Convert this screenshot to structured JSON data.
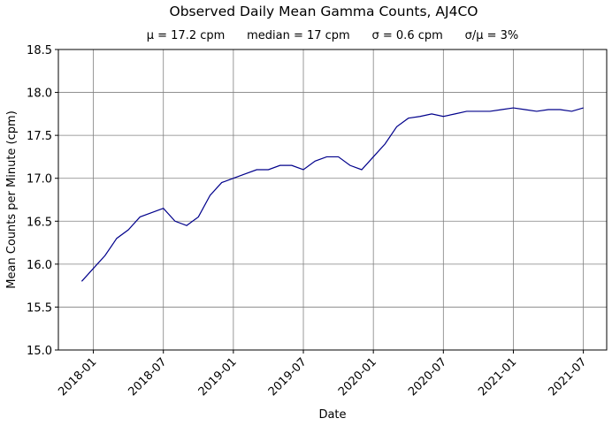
{
  "chart_data": {
    "type": "line",
    "title": "Observed Daily Mean Gamma Counts, AJ4CO",
    "subtitle": "μ = 17.2 cpm      median = 17 cpm      σ = 0.6 cpm      σ/μ = 3%",
    "x_label": "Date",
    "y_label": "Mean Counts per Minute (cpm)",
    "x": [
      "2017-12",
      "2018-01",
      "2018-02",
      "2018-03",
      "2018-04",
      "2018-05",
      "2018-06",
      "2018-07",
      "2018-08",
      "2018-09",
      "2018-10",
      "2018-11",
      "2018-12",
      "2019-01",
      "2019-02",
      "2019-03",
      "2019-04",
      "2019-05",
      "2019-06",
      "2019-07",
      "2019-08",
      "2019-09",
      "2019-10",
      "2019-11",
      "2019-12",
      "2020-01",
      "2020-02",
      "2020-03",
      "2020-04",
      "2020-05",
      "2020-06",
      "2020-07",
      "2020-08",
      "2020-09",
      "2020-10",
      "2020-11",
      "2020-12",
      "2021-01",
      "2021-02",
      "2021-03",
      "2021-04",
      "2021-05",
      "2021-06",
      "2021-07"
    ],
    "series": [
      {
        "name": "Daily mean",
        "color": "#00008b",
        "values": [
          15.8,
          15.95,
          16.1,
          16.3,
          16.4,
          16.55,
          16.6,
          16.65,
          16.5,
          16.45,
          16.55,
          16.8,
          16.95,
          17.0,
          17.05,
          17.1,
          17.1,
          17.15,
          17.15,
          17.1,
          17.2,
          17.25,
          17.25,
          17.15,
          17.1,
          17.25,
          17.4,
          17.6,
          17.7,
          17.72,
          17.75,
          17.72,
          17.75,
          17.78,
          17.78,
          17.78,
          17.8,
          17.82,
          17.8,
          17.78,
          17.8,
          17.8,
          17.78,
          17.82
        ]
      }
    ],
    "xlim": [
      "2017-10",
      "2021-09"
    ],
    "xticks": [
      "2018-01",
      "2018-07",
      "2019-01",
      "2019-07",
      "2020-01",
      "2020-07",
      "2021-01",
      "2021-07"
    ],
    "ylim": [
      15.0,
      18.5
    ],
    "yticks": [
      {
        "value": 15.0,
        "label": "15.0"
      },
      {
        "value": 15.5,
        "label": "15.5"
      },
      {
        "value": 16.0,
        "label": "16.0"
      },
      {
        "value": 16.5,
        "label": "16.5"
      },
      {
        "value": 17.0,
        "label": "17.0"
      },
      {
        "value": 17.5,
        "label": "17.5"
      },
      {
        "value": 18.0,
        "label": "18.0"
      },
      {
        "value": 18.5,
        "label": "18.5"
      }
    ],
    "grid": true
  }
}
